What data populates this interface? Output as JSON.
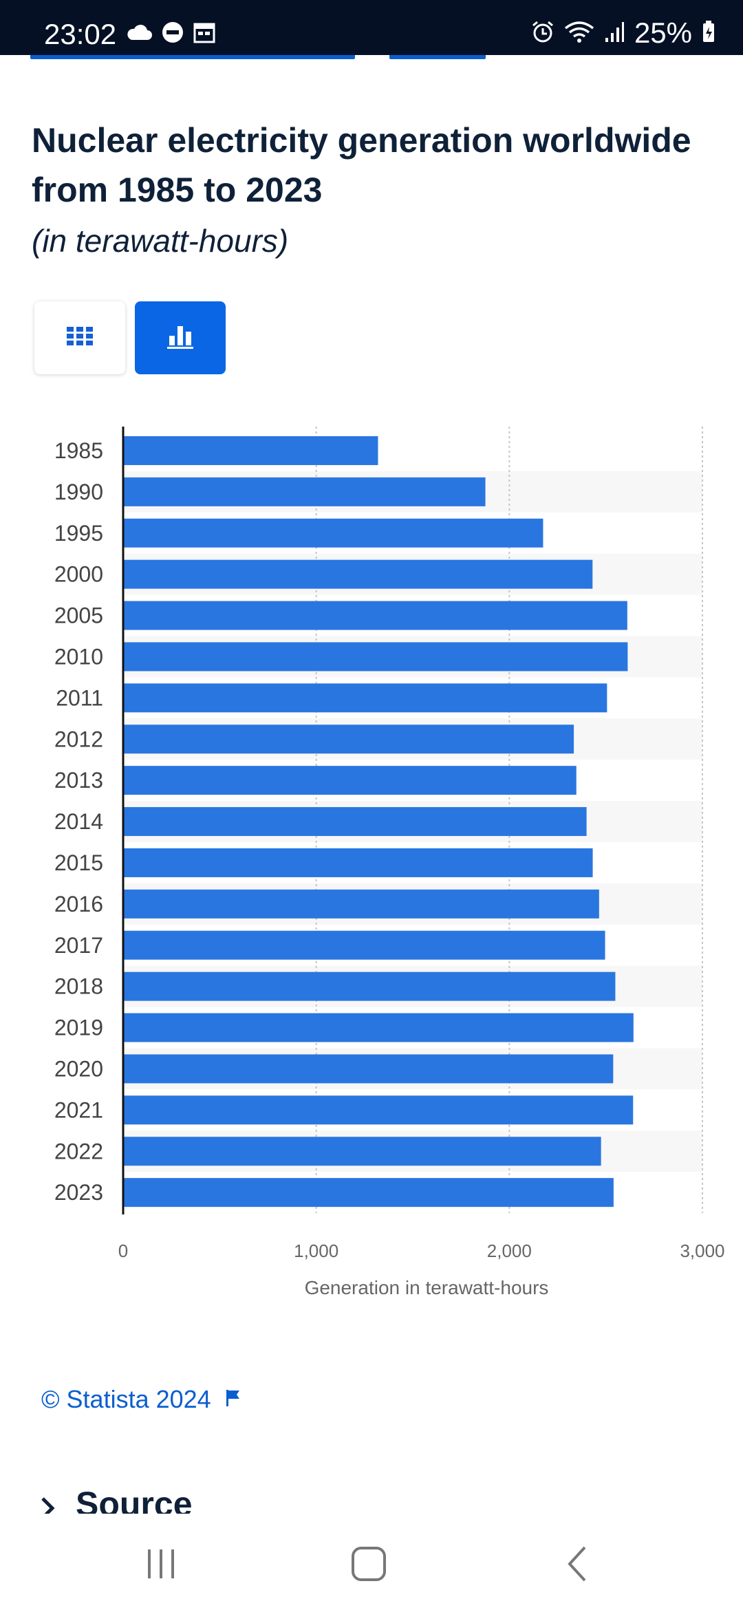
{
  "status_bar": {
    "time": "23:02",
    "battery": "25%",
    "left_icons": [
      "cloud-icon",
      "do-not-disturb-icon",
      "calendar-icon"
    ],
    "right_icons": [
      "alarm-icon",
      "wifi-icon",
      "signal-icon",
      "battery-charging-icon"
    ]
  },
  "chart": {
    "title": "Nuclear electricity generation worldwide from 1985 to 2023",
    "subtitle": "(in terawatt-hours)",
    "view_toggle": [
      "table-icon",
      "bar-chart-icon"
    ],
    "active_view": "chart"
  },
  "chart_data": {
    "type": "bar",
    "orientation": "horizontal",
    "categories": [
      "1985",
      "1990",
      "1995",
      "2000",
      "2005",
      "2010",
      "2011",
      "2012",
      "2013",
      "2014",
      "2015",
      "2016",
      "2017",
      "2018",
      "2019",
      "2020",
      "2021",
      "2022",
      "2023"
    ],
    "values": [
      1320,
      1876,
      2175,
      2431,
      2611,
      2613,
      2506,
      2334,
      2347,
      2400,
      2432,
      2465,
      2496,
      2549,
      2643,
      2538,
      2641,
      2475,
      2540
    ],
    "xlabel": "Generation in terawatt-hours",
    "ylabel": "",
    "xlim": [
      0,
      3000
    ],
    "xticks": [
      "0",
      "1,000",
      "2,000",
      "3,000"
    ],
    "grid": true,
    "bar_color": "#2a76e0"
  },
  "footer": {
    "copyright": "© Statista 2024",
    "source_label": "Source"
  },
  "nav_bar": {
    "buttons": [
      "recent-apps-icon",
      "home-icon",
      "back-icon"
    ]
  }
}
